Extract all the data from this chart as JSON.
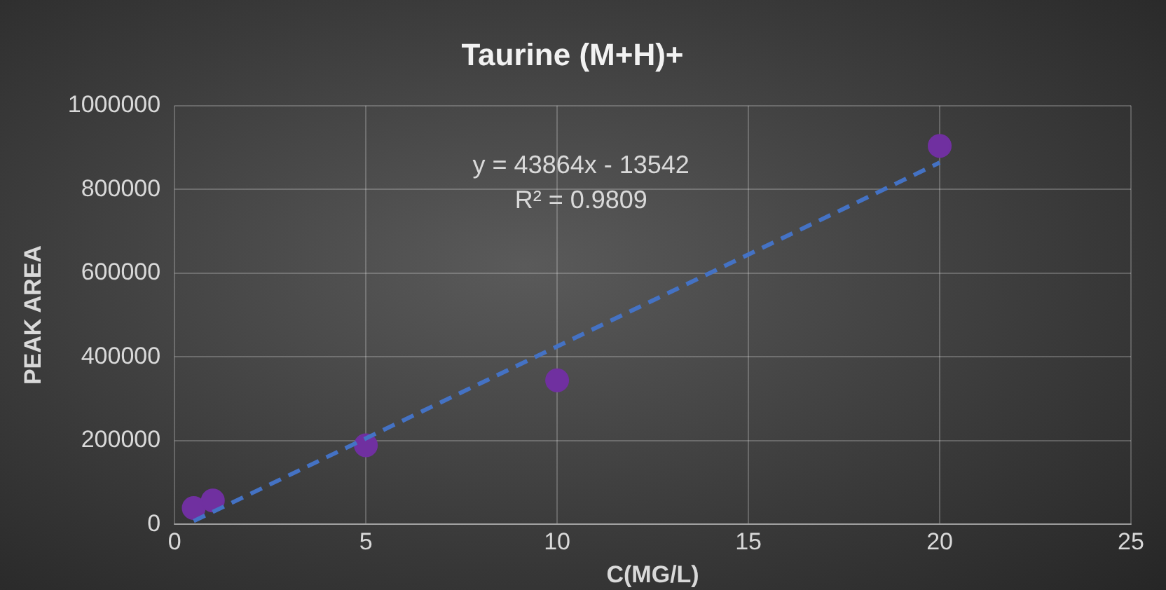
{
  "chart_data": {
    "type": "scatter",
    "title": "Taurine (M+H)+",
    "xlabel": "C(MG/L)",
    "ylabel": "PEAK AREA",
    "series": [
      {
        "color": "#7030a0",
        "x": [
          0.5,
          1,
          5,
          10,
          20
        ],
        "values": [
          39000,
          57000,
          189000,
          344000,
          904000
        ],
        "marker": "circle"
      },
      {
        "type": "line",
        "color": "#4472c4",
        "x": [
          0.5,
          20
        ],
        "values": [
          8000,
          864000
        ],
        "line_style": "dashed",
        "marker": "none"
      }
    ],
    "annotations": [
      "y = 43864x - 13542",
      "R² = 0.9809"
    ],
    "xlim": [
      0,
      25
    ],
    "xticks": [
      0,
      5,
      10,
      15,
      20,
      25
    ],
    "ylim": [
      0,
      1000000
    ],
    "yticks": [
      0,
      200000,
      400000,
      600000,
      800000,
      1000000
    ],
    "grid": true,
    "legend": false
  }
}
